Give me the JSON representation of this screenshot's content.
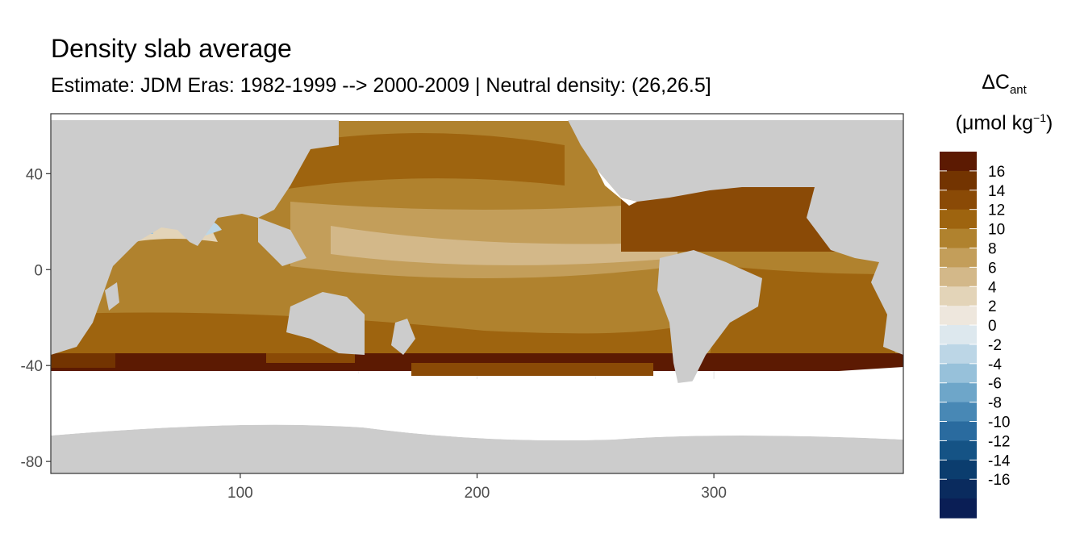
{
  "chart_data": {
    "type": "heatmap",
    "title": "Density slab average",
    "subtitle": "Estimate: JDM Eras: 1982-1999 --> 2000-2009 | Neutral density: (26,26.5]",
    "x_ticks": [
      100,
      200,
      300
    ],
    "y_ticks": [
      40,
      0,
      -40,
      -80
    ],
    "xlim": [
      20,
      380
    ],
    "ylim": [
      -85,
      65
    ],
    "legend": {
      "title_symbol": "ΔC",
      "title_sub": "ant",
      "unit_open": "(μmol kg",
      "unit_sup": "−1",
      "unit_close": ")",
      "labels": [
        "16",
        "14",
        "12",
        "10",
        "8",
        "6",
        "4",
        "2",
        "0",
        "-2",
        "-4",
        "-6",
        "-8",
        "-10",
        "-12",
        "-14",
        "-16"
      ],
      "colors": [
        "#5c1a02",
        "#733401",
        "#8a4a06",
        "#9e640f",
        "#b0822e",
        "#c39e5a",
        "#d3b889",
        "#e3d4b8",
        "#eee7dd",
        "#dde8ee",
        "#bcd6e6",
        "#97c1da",
        "#6ea6c9",
        "#4888b5",
        "#2a6b9f",
        "#155385",
        "#0b3d6e",
        "#0a2b5e",
        "#0a1e55"
      ],
      "placement": "right"
    },
    "background_colors": {
      "land": "#cccccc",
      "no_data": "#ffffff",
      "grid": "#ebebeb"
    }
  }
}
